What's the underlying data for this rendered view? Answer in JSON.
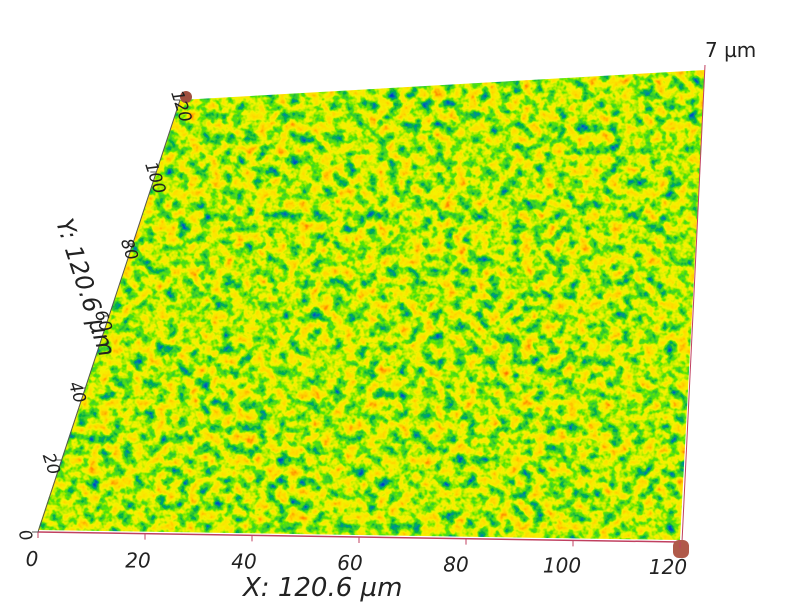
{
  "x_axis": {
    "label": "X: 120.6 µm",
    "ticks": [
      0,
      20,
      40,
      60,
      80,
      100,
      120
    ]
  },
  "y_axis": {
    "label": "Y: 120.6 µm",
    "ticks": [
      0,
      20,
      40,
      60,
      80,
      100,
      120
    ]
  },
  "z_axis": {
    "label": "7 µm"
  }
}
